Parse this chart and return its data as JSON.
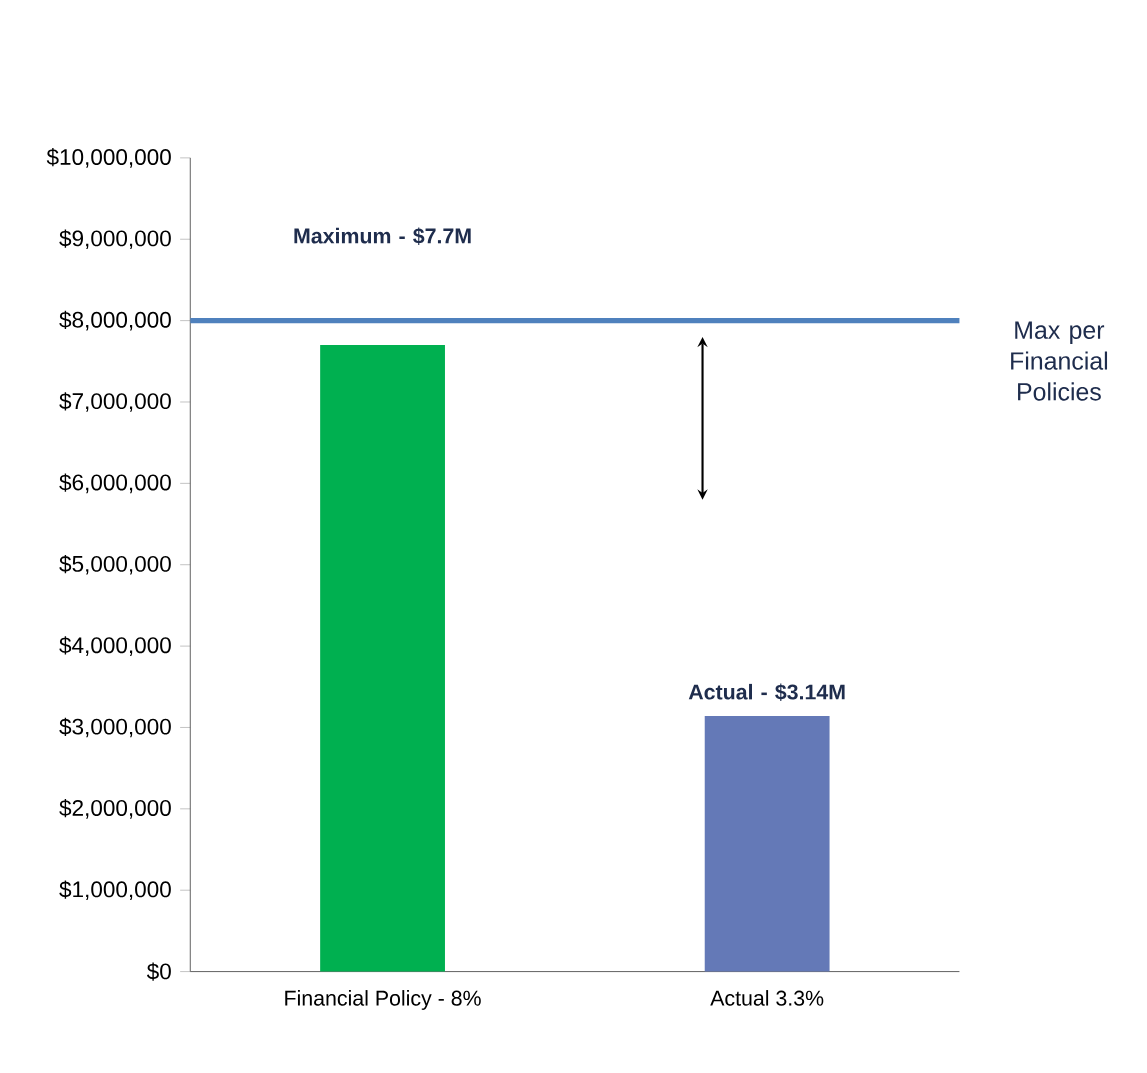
{
  "chart_data": {
    "type": "bar",
    "categories": [
      "Financial Policy - 8%",
      "Actual 3.3%"
    ],
    "values": [
      7700000,
      3140000
    ],
    "colors": [
      "#00b050",
      "#6479b7"
    ],
    "annotations": [
      "Maximum - $7.7M",
      "Actual - $3.14M"
    ],
    "ylim": [
      0,
      10000000
    ],
    "yticks": [
      {
        "value": 0,
        "label": "$0"
      },
      {
        "value": 1000000,
        "label": "$1,000,000"
      },
      {
        "value": 2000000,
        "label": "$2,000,000"
      },
      {
        "value": 3000000,
        "label": "$3,000,000"
      },
      {
        "value": 4000000,
        "label": "$4,000,000"
      },
      {
        "value": 5000000,
        "label": "$5,000,000"
      },
      {
        "value": 6000000,
        "label": "$6,000,000"
      },
      {
        "value": 7000000,
        "label": "$7,000,000"
      },
      {
        "value": 8000000,
        "label": "$8,000,000"
      },
      {
        "value": 9000000,
        "label": "$9,000,000"
      },
      {
        "value": 10000000,
        "label": "$10,000,000"
      }
    ],
    "ref_lines": [
      {
        "axis": "y",
        "value": 8000000,
        "label": "Max per Financial Policies",
        "color": "#4f81bd"
      }
    ]
  }
}
